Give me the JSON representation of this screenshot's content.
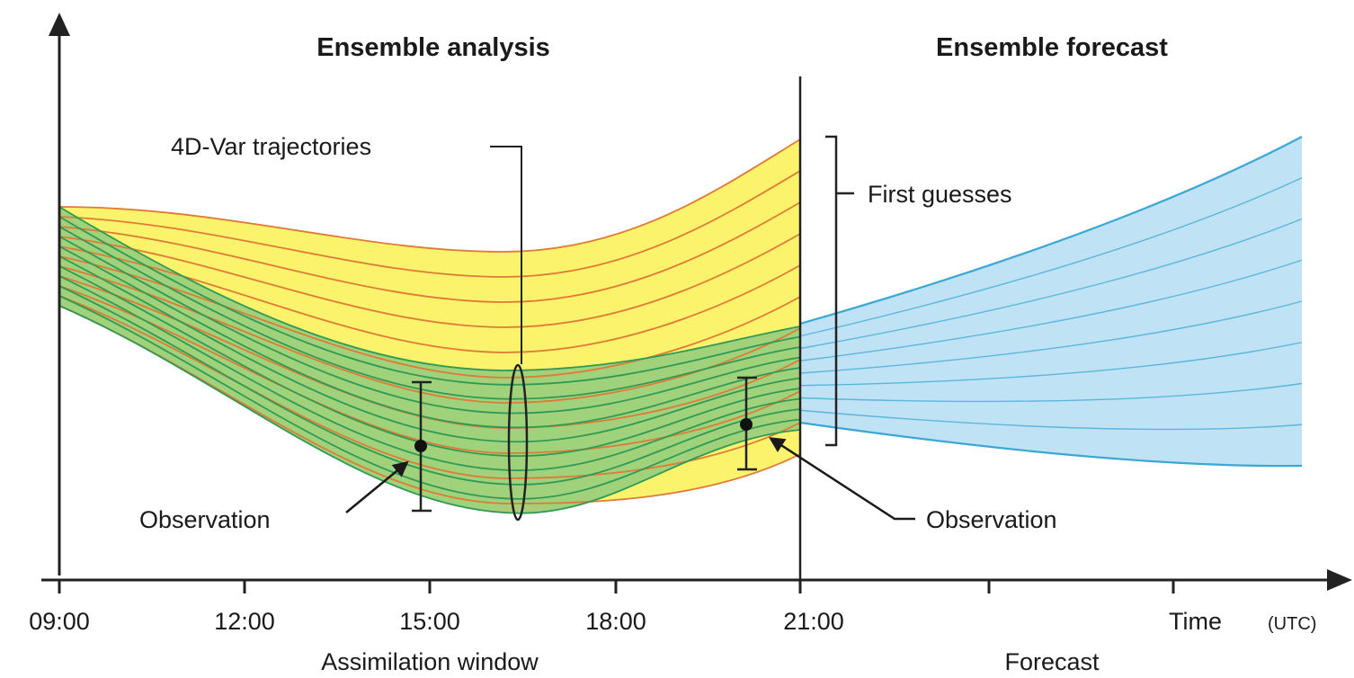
{
  "headings": {
    "analysis": "Ensemble analysis",
    "forecast": "Ensemble forecast"
  },
  "annotations": {
    "trajectories": "4D-Var trajectories",
    "first_guesses": "First guesses",
    "observation_left": "Observation",
    "observation_right": "Observation"
  },
  "x_axis": {
    "ticks": [
      "09:00",
      "12:00",
      "15:00",
      "18:00",
      "21:00"
    ],
    "time_label": "Time",
    "time_unit": "(UTC)",
    "window_label": "Assimilation window",
    "forecast_label": "Forecast"
  },
  "colors": {
    "first_guess_fill": "#fbf36b",
    "first_guess_line": "#e07a38",
    "analysis_fill": "#9fd27a",
    "analysis_line": "#2f9a55",
    "forecast_fill": "#bfe3f4",
    "forecast_line": "#3aa7d6",
    "axis": "#222222"
  }
}
